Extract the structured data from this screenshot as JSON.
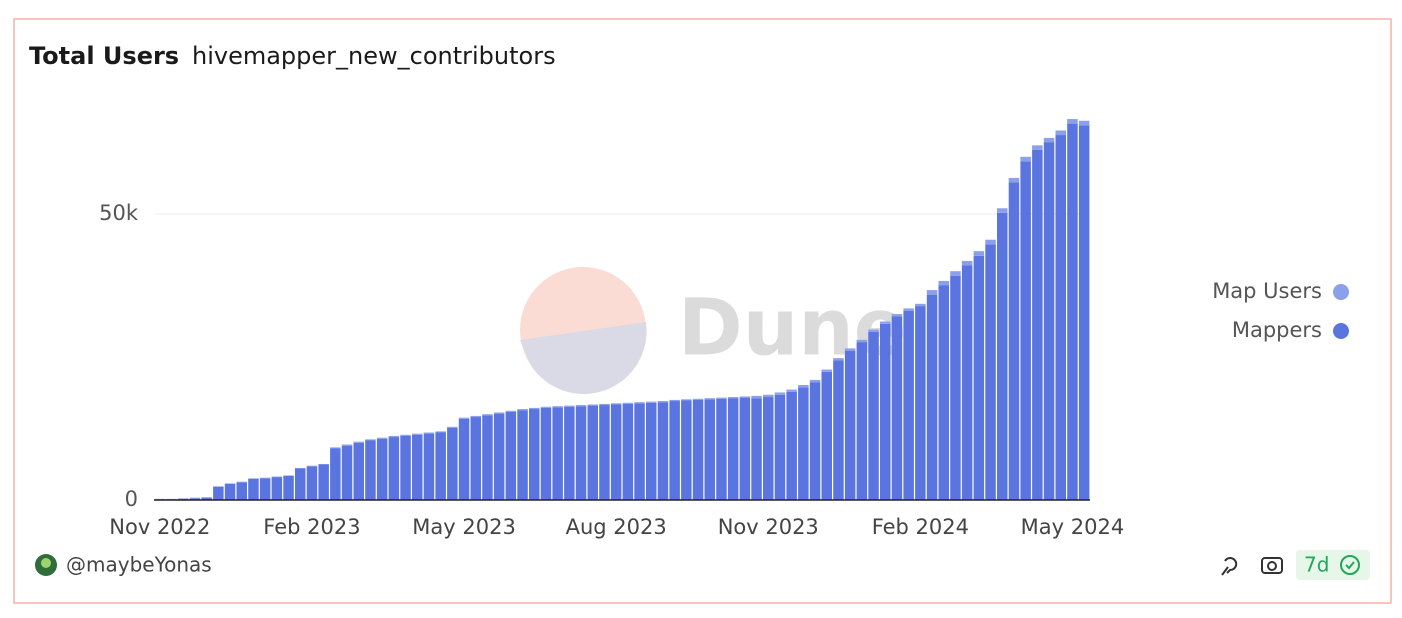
{
  "header": {
    "title": "Total Users",
    "subtitle": "hivemapper_new_contributors"
  },
  "footer": {
    "author": "@maybeYonas",
    "refresh": "7d"
  },
  "watermark": "Dune",
  "chart_data": {
    "type": "bar",
    "stacked": true,
    "legend": "right",
    "categories": [
      "Nov 2022",
      null,
      null,
      null,
      null,
      null,
      null,
      null,
      null,
      null,
      null,
      null,
      null,
      "Feb 2023",
      null,
      null,
      null,
      null,
      null,
      null,
      null,
      null,
      null,
      null,
      null,
      null,
      "May 2023",
      null,
      null,
      null,
      null,
      null,
      null,
      null,
      null,
      null,
      null,
      null,
      null,
      "Aug 2023",
      null,
      null,
      null,
      null,
      null,
      null,
      null,
      null,
      null,
      null,
      null,
      null,
      "Nov 2023",
      null,
      null,
      null,
      null,
      null,
      null,
      null,
      null,
      null,
      null,
      null,
      null,
      "Feb 2024",
      null,
      null,
      null,
      null,
      null,
      null,
      null,
      null,
      null,
      null,
      null,
      null,
      "May 2024",
      null
    ],
    "series": [
      {
        "name": "Map Users",
        "color": "#8c9fea",
        "values": [
          100,
          100,
          100,
          100,
          100,
          100,
          100,
          100,
          100,
          100,
          100,
          100,
          100,
          100,
          100,
          200,
          200,
          200,
          200,
          200,
          200,
          200,
          200,
          200,
          200,
          200,
          200,
          200,
          200,
          200,
          200,
          200,
          200,
          200,
          200,
          200,
          200,
          200,
          200,
          200,
          200,
          200,
          200,
          200,
          200,
          200,
          200,
          200,
          200,
          200,
          200,
          400,
          400,
          400,
          400,
          400,
          400,
          400,
          400,
          400,
          400,
          400,
          400,
          400,
          400,
          400,
          800,
          800,
          800,
          800,
          800,
          800,
          800,
          800,
          800,
          800,
          800,
          800,
          800,
          800
        ]
      },
      {
        "name": "Mappers",
        "color": "#5a74e0",
        "values": [
          100,
          100,
          200,
          300,
          400,
          2300,
          2800,
          3100,
          3700,
          3800,
          4000,
          4200,
          5500,
          5900,
          6200,
          9000,
          9500,
          10000,
          10400,
          10700,
          11000,
          11200,
          11400,
          11600,
          11800,
          12600,
          14200,
          14500,
          14800,
          15100,
          15400,
          15700,
          15900,
          16100,
          16200,
          16300,
          16400,
          16500,
          16600,
          16700,
          16800,
          16900,
          17000,
          17100,
          17300,
          17400,
          17500,
          17600,
          17700,
          17800,
          17900,
          17800,
          18000,
          18400,
          18900,
          19700,
          20600,
          22400,
          24400,
          26100,
          27600,
          29400,
          30800,
          32100,
          33100,
          33900,
          35900,
          37500,
          39200,
          41000,
          42700,
          44700,
          50200,
          55500,
          59200,
          61200,
          62500,
          63800,
          65800,
          65500
        ]
      }
    ],
    "ylim": [
      0,
      70000
    ],
    "yticks": [
      0,
      {
        "value": 50000,
        "label": "50k"
      }
    ],
    "grid": true
  }
}
